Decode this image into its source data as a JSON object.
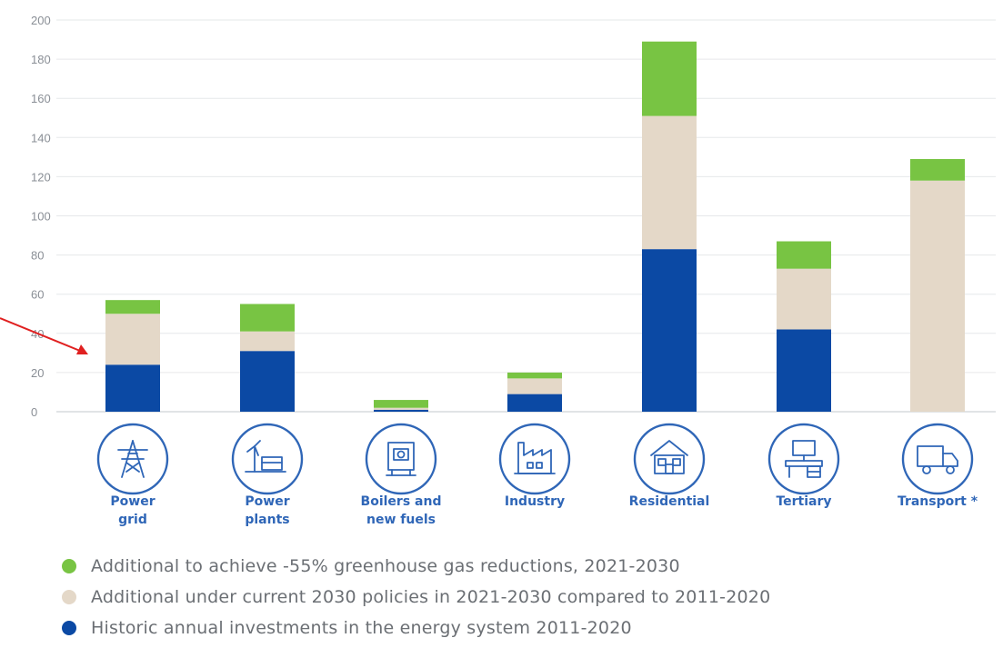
{
  "chart_data": {
    "type": "bar",
    "stacked": true,
    "categories": [
      "Power grid",
      "Power plants",
      "Boilers and new fuels",
      "Industry",
      "Residential",
      "Tertiary",
      "Transport *"
    ],
    "category_lines": [
      [
        "Power",
        "grid"
      ],
      [
        "Power",
        "plants"
      ],
      [
        "Boilers and",
        "new fuels"
      ],
      [
        "Industry"
      ],
      [
        "Residential"
      ],
      [
        "Tertiary"
      ],
      [
        "Transport *"
      ]
    ],
    "category_icons": [
      "power-pylon-icon",
      "power-plant-icon",
      "boiler-icon",
      "factory-icon",
      "house-icon",
      "office-desk-icon",
      "truck-icon"
    ],
    "series": [
      {
        "name": "Historic annual investments in the energy system 2011-2020",
        "color": "#0b49a4",
        "values": [
          24,
          31,
          1,
          9,
          83,
          42,
          0
        ]
      },
      {
        "name": "Additional under current 2030 policies in 2021-2030 compared to 2011-2020",
        "color": "#e4d8c8",
        "values": [
          26,
          10,
          1,
          8,
          68,
          31,
          118
        ]
      },
      {
        "name": "Additional to achieve -55% greenhouse gas reductions, 2021-2030",
        "color": "#78c443",
        "values": [
          7,
          14,
          4,
          3,
          38,
          14,
          11
        ]
      }
    ],
    "legend_order": [
      2,
      1,
      0
    ],
    "yticks": [
      0,
      20,
      40,
      60,
      80,
      100,
      120,
      140,
      160,
      180,
      200
    ],
    "ylim": [
      0,
      200
    ],
    "grid": true,
    "legend_position": "bottom",
    "title": "",
    "xlabel": "",
    "ylabel": "",
    "annotation_arrow_color": "#e02020"
  }
}
